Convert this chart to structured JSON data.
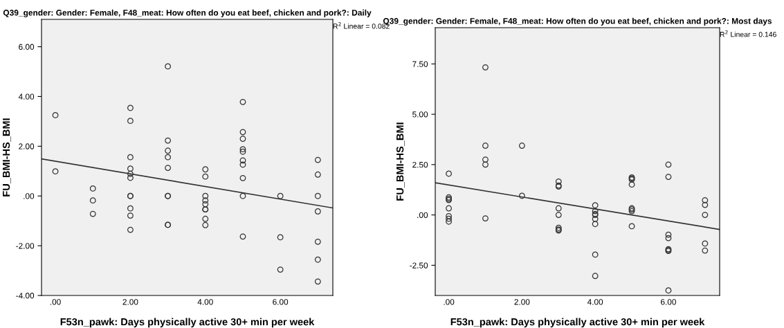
{
  "chart_data": [
    {
      "type": "scatter",
      "title": "Q39_gender: Gender: Female, F48_meat: How often do you eat beef, chicken and pork?: Daily",
      "xlabel": "F53n_pawk: Days physically active 30+ min per week",
      "ylabel": "FU_BMI-HS_BMI",
      "annotations": [
        "R$^{2}$ Linear = 0.082"
      ],
      "xlim": [
        -0.37,
        7.4
      ],
      "ylim": [
        -4,
        7.1
      ],
      "xticks": [
        {
          "value": 0,
          "label": ".00"
        },
        {
          "value": 2,
          "label": "2.00"
        },
        {
          "value": 4,
          "label": "4.00"
        },
        {
          "value": 6,
          "label": "6.00"
        }
      ],
      "yticks": [
        {
          "value": -4,
          "label": "-4.00"
        },
        {
          "value": -2,
          "label": "-2.00"
        },
        {
          "value": 0,
          "label": ".00"
        },
        {
          "value": 2,
          "label": "2.00"
        },
        {
          "value": 4,
          "label": "4.00"
        },
        {
          "value": 6,
          "label": "6.00"
        }
      ],
      "grid": false,
      "legend": false,
      "series": [
        {
          "marker": "circle",
          "color": "#333333",
          "x": [
            0,
            0,
            1,
            1,
            1,
            2,
            2,
            2,
            2,
            2,
            2,
            2,
            2,
            2,
            2,
            2,
            3,
            3,
            3,
            3,
            3,
            3,
            3,
            3,
            3,
            4,
            4,
            4,
            4,
            4,
            4,
            4,
            4,
            4,
            5,
            5,
            5,
            5,
            5,
            5,
            5,
            5,
            5,
            5,
            6,
            6,
            6,
            7,
            7,
            7,
            7,
            7,
            7,
            7
          ],
          "values": [
            3.25,
            0.99,
            0.3,
            -0.18,
            -0.72,
            3.54,
            3.02,
            1.56,
            1.1,
            0.89,
            0.73,
            0,
            0,
            -0.5,
            -0.79,
            -1.36,
            5.21,
            2.23,
            1.82,
            1.56,
            1.13,
            0,
            0,
            -1.16,
            -1.16,
            1.07,
            0.78,
            0,
            -0.18,
            -0.33,
            -0.54,
            -0.54,
            -0.92,
            -1.17,
            3.78,
            2.57,
            2.3,
            1.88,
            1.78,
            1.43,
            1.26,
            0.72,
            0,
            -1.63,
            0,
            -1.66,
            -2.96,
            1.45,
            0.86,
            0,
            -0.62,
            -1.84,
            -2.56,
            -3.44
          ]
        },
        {
          "type": "line",
          "color": "#333333",
          "x": [
            -0.37,
            7.4
          ],
          "values": [
            1.49,
            -0.48
          ]
        }
      ]
    },
    {
      "type": "scatter",
      "title": "Q39_gender: Gender: Female, F48_meat: How often do you eat beef, chicken and pork?: Most days",
      "xlabel": "F53n_pawk: Days physically active 30+ min per week",
      "ylabel": "FU_BMI-HS_BMI",
      "annotations": [
        "R$^{2}$ Linear = 0.146"
      ],
      "xlim": [
        -0.37,
        7.4
      ],
      "ylim": [
        -4,
        9.3
      ],
      "xticks": [
        {
          "value": 0,
          "label": ".00"
        },
        {
          "value": 2,
          "label": "2.00"
        },
        {
          "value": 4,
          "label": "4.00"
        },
        {
          "value": 6,
          "label": "6.00"
        }
      ],
      "yticks": [
        {
          "value": -2.5,
          "label": "-2.50"
        },
        {
          "value": 0,
          "label": ".00"
        },
        {
          "value": 2.5,
          "label": "2.50"
        },
        {
          "value": 5,
          "label": "5.00"
        },
        {
          "value": 7.5,
          "label": "7.50"
        }
      ],
      "grid": false,
      "legend": false,
      "series": [
        {
          "marker": "circle",
          "color": "#333333",
          "x": [
            0,
            0,
            0,
            0,
            0,
            0,
            0,
            0,
            1,
            1,
            1,
            1,
            1,
            2,
            2,
            3,
            3,
            3,
            3,
            3,
            3,
            3,
            3,
            4,
            4,
            4,
            4,
            4,
            4,
            4,
            4,
            5,
            5,
            5,
            5,
            5,
            5,
            5,
            5,
            6,
            6,
            6,
            6,
            6,
            6,
            6,
            6,
            7,
            7,
            7,
            7,
            7
          ],
          "values": [
            2.05,
            0.87,
            0.8,
            0.74,
            0.33,
            -0.06,
            -0.19,
            -0.33,
            7.33,
            3.44,
            2.75,
            2.5,
            -0.17,
            3.44,
            0.95,
            1.66,
            1.46,
            1.41,
            0.33,
            0,
            -0.64,
            -0.72,
            -0.77,
            0.48,
            0.19,
            0.05,
            0,
            -0.2,
            -0.45,
            -1.97,
            -3.03,
            1.86,
            1.81,
            1.76,
            1.51,
            0.33,
            0.27,
            0.19,
            -0.56,
            2.5,
            1.89,
            -0.98,
            -1.15,
            -1.7,
            -1.75,
            -1.79,
            -3.75,
            0.73,
            0.5,
            0,
            -1.42,
            -1.77
          ]
        },
        {
          "type": "line",
          "color": "#333333",
          "x": [
            -0.37,
            7.4
          ],
          "values": [
            1.6,
            -0.72
          ]
        }
      ]
    }
  ]
}
